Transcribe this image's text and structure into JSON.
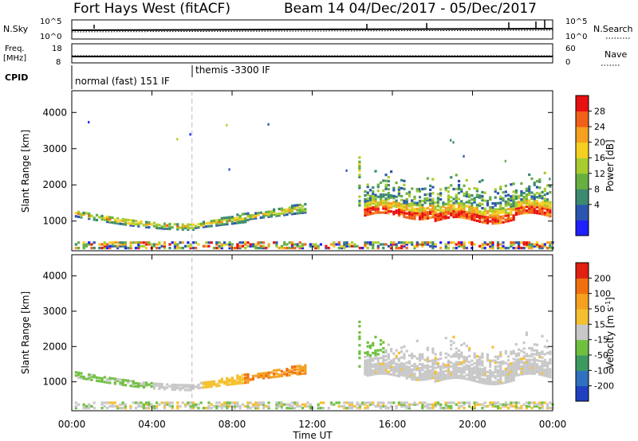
{
  "header": {
    "title": "Fort Hays West (fitACF)",
    "subtitle": "Beam 14  04/Dec/2017 - 05/Dec/2017"
  },
  "strip": {
    "nsky_label": "N.Sky",
    "nsky_ticks": [
      "10^5",
      "10^0"
    ],
    "nsearch_label": "N.Search",
    "nsearch_ticks": [
      "10^5",
      "10^0"
    ],
    "freq_label": "Freq.",
    "freq_unit": "[MHz]",
    "freq_ticks": [
      "18",
      "8"
    ],
    "nave_label": "Nave",
    "nave_ticks": [
      "60",
      "0"
    ],
    "cpid_label": "CPID",
    "cpid_segments": [
      {
        "text": "normal (fast) 151 IF",
        "start_hour": 0
      },
      {
        "text": "themis -3300 IF",
        "start_hour": 6
      }
    ]
  },
  "chart_data": [
    {
      "type": "heatmap",
      "title": "Power",
      "xlabel": "Time UT",
      "ylabel": "Slant Range [km]",
      "x_ticks": [
        "00:00",
        "04:00",
        "08:00",
        "12:00",
        "16:00",
        "20:00",
        "00:00"
      ],
      "x_hours": [
        0,
        4,
        8,
        12,
        16,
        20,
        24
      ],
      "xlim_hours": [
        0,
        24
      ],
      "y_ticks": [
        1000,
        2000,
        3000,
        4000
      ],
      "ylim": [
        180,
        4600
      ],
      "colorbar_label": "Power [dB]",
      "colorbar_ticks": [
        "28",
        "24",
        "20",
        "16",
        "12",
        "8",
        "4"
      ],
      "colorbar_colors": [
        "#2020ff",
        "#2b56b0",
        "#3c8a70",
        "#67b040",
        "#a8cc30",
        "#f5d020",
        "#f5a020",
        "#f06018",
        "#e81010"
      ],
      "features": [
        {
          "name": "early echoes",
          "start_hour": 0.1,
          "end_hour": 11.5,
          "center_range_km": 1150
        },
        {
          "name": "main band",
          "start_hour": 14.5,
          "end_hour": 23.8,
          "center_range_km": 1350
        },
        {
          "name": "near-range clutter",
          "start_hour": 0,
          "end_hour": 24,
          "center_range_km": 290
        }
      ]
    },
    {
      "type": "heatmap",
      "title": "Velocity",
      "xlabel": "Time UT",
      "ylabel": "Slant Range [km]",
      "x_ticks": [
        "00:00",
        "04:00",
        "08:00",
        "12:00",
        "16:00",
        "20:00",
        "00:00"
      ],
      "x_hours": [
        0,
        4,
        8,
        12,
        16,
        20,
        24
      ],
      "xlim_hours": [
        0,
        24
      ],
      "y_ticks": [
        1000,
        2000,
        3000,
        4000
      ],
      "ylim": [
        180,
        4600
      ],
      "colorbar_label": "Velocity [m s",
      "colorbar_label_sup": "-1",
      "colorbar_label_end": "]",
      "colorbar_ticks": [
        "200",
        "100",
        "50",
        "15",
        "-15",
        "-50",
        "-100",
        "-200"
      ],
      "colorbar_colors": [
        "#2040c0",
        "#3070c0",
        "#3c9a60",
        "#70c040",
        "#c8c8c8",
        "#f5c030",
        "#f5a020",
        "#f07010",
        "#e02010"
      ]
    }
  ],
  "marker_hour": 6,
  "footer": {
    "xlabel": "Time UT"
  }
}
